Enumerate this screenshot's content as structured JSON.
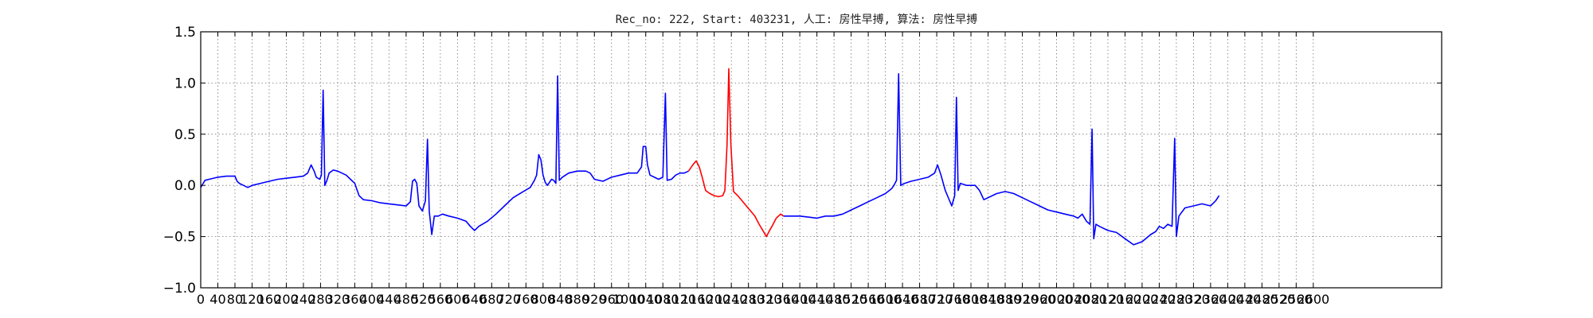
{
  "chart_data": {
    "type": "line",
    "title": "Rec_no: 222, Start: 403231, 人工: 房性早搏, 算法: 房性早搏",
    "xlabel": "",
    "ylabel": "",
    "xlim": [
      0,
      2900
    ],
    "ylim": [
      -1.0,
      1.5
    ],
    "grid": true,
    "yticks": [
      -1.0,
      -0.5,
      0.0,
      0.5,
      1.0,
      1.5
    ],
    "ytick_labels": [
      "−1.0",
      "−0.5",
      "0.0",
      "0.5",
      "1.0",
      "1.5"
    ],
    "xticks": [
      0,
      40,
      80,
      120,
      160,
      200,
      240,
      280,
      320,
      360,
      400,
      440,
      480,
      520,
      560,
      600,
      640,
      680,
      720,
      760,
      800,
      840,
      880,
      920,
      960,
      1000,
      1040,
      1080,
      1120,
      1160,
      1200,
      1240,
      1280,
      1320,
      1360,
      1400,
      1440,
      1480,
      1520,
      1560,
      1600,
      1640,
      1680,
      1720,
      1760,
      1800,
      1840,
      1880,
      1920,
      1960,
      2000,
      2040,
      2080,
      2120,
      2160,
      2200,
      2240,
      2280,
      2320,
      2360,
      2400,
      2440,
      2480,
      2520,
      2560,
      2600
    ],
    "xtick_labels": [
      "0",
      "40",
      "80",
      "120",
      "160",
      "200",
      "240",
      "280",
      "320",
      "360",
      "400",
      "440",
      "480",
      "520",
      "560",
      "600",
      "640",
      "680",
      "720",
      "760",
      "800",
      "840",
      "880",
      "920",
      "960",
      "1000",
      "1040",
      "1080",
      "1120",
      "1160",
      "1200",
      "1240",
      "1280",
      "1320",
      "1360",
      "1400",
      "1440",
      "1480",
      "1520",
      "1560",
      "1600",
      "1640",
      "1680",
      "1720",
      "1760",
      "1800",
      "1840",
      "1880",
      "1920",
      "1960",
      "2000",
      "2040",
      "2080",
      "2120",
      "2160",
      "2200",
      "2240",
      "2280",
      "2320",
      "2360",
      "2400",
      "2440",
      "2480",
      "2520",
      "2560",
      "2600"
    ],
    "series": [
      {
        "color": "#0000ff",
        "points": [
          [
            0,
            -0.02
          ],
          [
            10,
            0.05
          ],
          [
            20,
            0.06
          ],
          [
            40,
            0.08
          ],
          [
            60,
            0.09
          ],
          [
            80,
            0.09
          ],
          [
            85,
            0.04
          ],
          [
            90,
            0.02
          ],
          [
            100,
            0.0
          ],
          [
            110,
            -0.02
          ],
          [
            120,
            0.0
          ],
          [
            140,
            0.02
          ],
          [
            160,
            0.04
          ],
          [
            180,
            0.06
          ],
          [
            200,
            0.07
          ],
          [
            220,
            0.08
          ],
          [
            240,
            0.09
          ],
          [
            250,
            0.12
          ],
          [
            258,
            0.2
          ],
          [
            265,
            0.14
          ],
          [
            270,
            0.08
          ],
          [
            278,
            0.06
          ],
          [
            282,
            0.1
          ],
          [
            286,
            0.93
          ],
          [
            290,
            0.0
          ],
          [
            295,
            0.05
          ],
          [
            300,
            0.12
          ],
          [
            310,
            0.15
          ],
          [
            320,
            0.14
          ],
          [
            340,
            0.1
          ],
          [
            350,
            0.06
          ],
          [
            360,
            0.02
          ],
          [
            370,
            -0.1
          ],
          [
            380,
            -0.14
          ],
          [
            400,
            -0.15
          ],
          [
            420,
            -0.17
          ],
          [
            440,
            -0.18
          ],
          [
            460,
            -0.19
          ],
          [
            480,
            -0.2
          ],
          [
            490,
            -0.16
          ],
          [
            495,
            0.04
          ],
          [
            500,
            0.06
          ],
          [
            505,
            0.02
          ],
          [
            510,
            -0.2
          ],
          [
            518,
            -0.25
          ],
          [
            525,
            -0.15
          ],
          [
            530,
            0.45
          ],
          [
            534,
            -0.25
          ],
          [
            540,
            -0.48
          ],
          [
            546,
            -0.3
          ],
          [
            555,
            -0.3
          ],
          [
            565,
            -0.28
          ],
          [
            580,
            -0.3
          ],
          [
            600,
            -0.32
          ],
          [
            620,
            -0.35
          ],
          [
            630,
            -0.4
          ],
          [
            640,
            -0.44
          ],
          [
            650,
            -0.4
          ],
          [
            670,
            -0.35
          ],
          [
            690,
            -0.28
          ],
          [
            710,
            -0.2
          ],
          [
            730,
            -0.12
          ],
          [
            750,
            -0.07
          ],
          [
            770,
            -0.02
          ],
          [
            780,
            0.05
          ],
          [
            785,
            0.1
          ],
          [
            790,
            0.3
          ],
          [
            795,
            0.25
          ],
          [
            800,
            0.1
          ],
          [
            805,
            0.03
          ],
          [
            810,
            0.0
          ],
          [
            815,
            0.03
          ],
          [
            820,
            0.06
          ],
          [
            825,
            0.05
          ],
          [
            830,
            0.02
          ],
          [
            834,
            1.07
          ],
          [
            838,
            0.05
          ],
          [
            845,
            0.08
          ],
          [
            860,
            0.12
          ],
          [
            880,
            0.14
          ],
          [
            900,
            0.14
          ],
          [
            910,
            0.12
          ],
          [
            920,
            0.06
          ],
          [
            940,
            0.04
          ],
          [
            960,
            0.08
          ],
          [
            980,
            0.1
          ],
          [
            1000,
            0.12
          ],
          [
            1010,
            0.12
          ],
          [
            1020,
            0.12
          ],
          [
            1030,
            0.18
          ],
          [
            1034,
            0.38
          ],
          [
            1040,
            0.38
          ],
          [
            1044,
            0.2
          ],
          [
            1050,
            0.1
          ],
          [
            1060,
            0.08
          ],
          [
            1070,
            0.06
          ],
          [
            1080,
            0.08
          ],
          [
            1086,
            0.9
          ],
          [
            1090,
            0.05
          ],
          [
            1100,
            0.06
          ],
          [
            1110,
            0.1
          ],
          [
            1120,
            0.12
          ],
          [
            1130,
            0.12
          ],
          [
            1140,
            0.14
          ]
        ]
      },
      {
        "color": "#ff0000",
        "points": [
          [
            1140,
            0.14
          ],
          [
            1150,
            0.2
          ],
          [
            1158,
            0.24
          ],
          [
            1165,
            0.18
          ],
          [
            1172,
            0.08
          ],
          [
            1180,
            -0.05
          ],
          [
            1190,
            -0.08
          ],
          [
            1200,
            -0.1
          ],
          [
            1210,
            -0.11
          ],
          [
            1220,
            -0.1
          ],
          [
            1225,
            -0.05
          ],
          [
            1230,
            0.4
          ],
          [
            1234,
            1.14
          ],
          [
            1239,
            0.4
          ],
          [
            1245,
            -0.06
          ],
          [
            1255,
            -0.1
          ],
          [
            1265,
            -0.15
          ],
          [
            1275,
            -0.2
          ],
          [
            1285,
            -0.25
          ],
          [
            1295,
            -0.3
          ],
          [
            1305,
            -0.38
          ],
          [
            1315,
            -0.45
          ],
          [
            1322,
            -0.5
          ],
          [
            1328,
            -0.45
          ],
          [
            1335,
            -0.4
          ],
          [
            1345,
            -0.32
          ],
          [
            1355,
            -0.28
          ],
          [
            1362,
            -0.3
          ]
        ]
      },
      {
        "color": "#0000ff",
        "points": [
          [
            1362,
            -0.3
          ],
          [
            1380,
            -0.3
          ],
          [
            1400,
            -0.3
          ],
          [
            1420,
            -0.31
          ],
          [
            1440,
            -0.32
          ],
          [
            1460,
            -0.3
          ],
          [
            1480,
            -0.3
          ],
          [
            1500,
            -0.28
          ],
          [
            1520,
            -0.24
          ],
          [
            1540,
            -0.2
          ],
          [
            1560,
            -0.16
          ],
          [
            1580,
            -0.12
          ],
          [
            1600,
            -0.08
          ],
          [
            1615,
            -0.03
          ],
          [
            1620,
            0.0
          ],
          [
            1626,
            0.05
          ],
          [
            1631,
            1.09
          ],
          [
            1636,
            0.0
          ],
          [
            1645,
            0.02
          ],
          [
            1660,
            0.04
          ],
          [
            1680,
            0.06
          ],
          [
            1700,
            0.08
          ],
          [
            1715,
            0.12
          ],
          [
            1722,
            0.2
          ],
          [
            1730,
            0.1
          ],
          [
            1740,
            -0.05
          ],
          [
            1750,
            -0.15
          ],
          [
            1755,
            -0.2
          ],
          [
            1762,
            -0.1
          ],
          [
            1766,
            0.86
          ],
          [
            1770,
            -0.05
          ],
          [
            1775,
            0.02
          ],
          [
            1790,
            0.0
          ],
          [
            1810,
            0.0
          ],
          [
            1820,
            -0.05
          ],
          [
            1830,
            -0.14
          ],
          [
            1840,
            -0.12
          ],
          [
            1860,
            -0.08
          ],
          [
            1880,
            -0.06
          ],
          [
            1900,
            -0.08
          ],
          [
            1920,
            -0.12
          ],
          [
            1940,
            -0.16
          ],
          [
            1960,
            -0.2
          ],
          [
            1980,
            -0.24
          ],
          [
            2000,
            -0.26
          ],
          [
            2020,
            -0.28
          ],
          [
            2040,
            -0.3
          ],
          [
            2050,
            -0.32
          ],
          [
            2060,
            -0.28
          ],
          [
            2070,
            -0.35
          ],
          [
            2078,
            -0.38
          ],
          [
            2083,
            0.55
          ],
          [
            2087,
            -0.52
          ],
          [
            2092,
            -0.38
          ],
          [
            2100,
            -0.4
          ],
          [
            2120,
            -0.44
          ],
          [
            2140,
            -0.46
          ],
          [
            2160,
            -0.52
          ],
          [
            2180,
            -0.58
          ],
          [
            2200,
            -0.55
          ],
          [
            2220,
            -0.48
          ],
          [
            2232,
            -0.45
          ],
          [
            2240,
            -0.4
          ],
          [
            2250,
            -0.42
          ],
          [
            2260,
            -0.38
          ],
          [
            2270,
            -0.4
          ],
          [
            2276,
            0.46
          ],
          [
            2280,
            -0.5
          ],
          [
            2286,
            -0.3
          ],
          [
            2300,
            -0.22
          ],
          [
            2320,
            -0.2
          ],
          [
            2340,
            -0.18
          ],
          [
            2360,
            -0.2
          ],
          [
            2372,
            -0.15
          ],
          [
            2380,
            -0.1
          ]
        ]
      }
    ]
  }
}
